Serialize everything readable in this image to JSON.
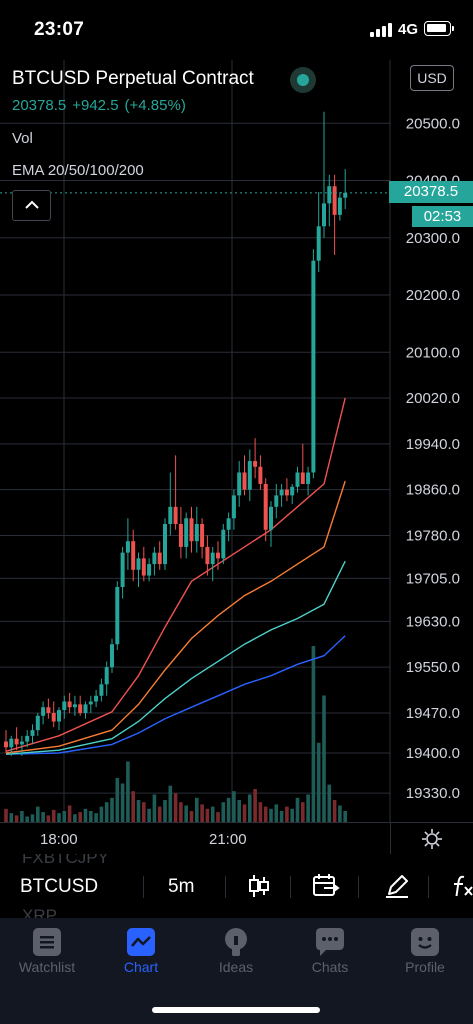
{
  "status_bar": {
    "time": "23:07",
    "network": "4G"
  },
  "legend": {
    "symbol_title": "BTCUSD Perpetual Contract",
    "last_price": "20378.5",
    "change": "+942.5",
    "change_percent": "(+4.85%)",
    "volume_label": "Vol",
    "ema_label": "EMA 20/50/100/200"
  },
  "chart": {
    "currency_button": "USD",
    "last_price_tag": "20378.5",
    "countdown_tag": "02:53",
    "time_labels": [
      "18:00",
      "21:00"
    ],
    "colors": {
      "up": "#26a69a",
      "down": "#ef5350",
      "ema20": "#ef5350",
      "ema50": "#f57c35",
      "ema100": "#4dd0c8",
      "ema200": "#2962ff"
    }
  },
  "chart_data": {
    "type": "candlestick",
    "price_axis_ticks": [
      "20500.0",
      "20400.0",
      "20300.0",
      "20200.0",
      "20100.0",
      "20020.0",
      "19940.0",
      "19860.0",
      "19780.0",
      "19705.0",
      "19630.0",
      "19550.0",
      "19470.0",
      "19400.0",
      "19330.0"
    ],
    "time_axis_ticks": [
      "18:00",
      "21:00"
    ],
    "ylim": [
      19290,
      20600
    ],
    "last_price": 20378.5,
    "candles": [
      [
        19420,
        19440,
        19400,
        19410
      ],
      [
        19410,
        19430,
        19395,
        19425
      ],
      [
        19425,
        19445,
        19405,
        19415
      ],
      [
        19415,
        19430,
        19395,
        19420
      ],
      [
        19420,
        19440,
        19410,
        19430
      ],
      [
        19430,
        19450,
        19415,
        19440
      ],
      [
        19440,
        19470,
        19430,
        19465
      ],
      [
        19465,
        19490,
        19450,
        19480
      ],
      [
        19480,
        19495,
        19460,
        19470
      ],
      [
        19470,
        19490,
        19445,
        19455
      ],
      [
        19455,
        19480,
        19440,
        19475
      ],
      [
        19475,
        19500,
        19460,
        19490
      ],
      [
        19490,
        19505,
        19470,
        19480
      ],
      [
        19480,
        19500,
        19465,
        19485
      ],
      [
        19485,
        19500,
        19465,
        19470
      ],
      [
        19470,
        19490,
        19460,
        19485
      ],
      [
        19485,
        19500,
        19470,
        19490
      ],
      [
        19490,
        19510,
        19480,
        19500
      ],
      [
        19500,
        19530,
        19490,
        19520
      ],
      [
        19520,
        19560,
        19500,
        19550
      ],
      [
        19550,
        19600,
        19540,
        19590
      ],
      [
        19590,
        19700,
        19580,
        19690
      ],
      [
        19690,
        19760,
        19670,
        19750
      ],
      [
        19750,
        19810,
        19720,
        19770
      ],
      [
        19770,
        19790,
        19700,
        19720
      ],
      [
        19720,
        19750,
        19690,
        19740
      ],
      [
        19740,
        19760,
        19700,
        19710
      ],
      [
        19710,
        19740,
        19700,
        19730
      ],
      [
        19730,
        19760,
        19710,
        19750
      ],
      [
        19750,
        19770,
        19720,
        19730
      ],
      [
        19730,
        19810,
        19720,
        19800
      ],
      [
        19800,
        19890,
        19780,
        19830
      ],
      [
        19830,
        19920,
        19790,
        19800
      ],
      [
        19800,
        19830,
        19740,
        19760
      ],
      [
        19760,
        19820,
        19740,
        19810
      ],
      [
        19810,
        19830,
        19750,
        19770
      ],
      [
        19770,
        19830,
        19750,
        19800
      ],
      [
        19800,
        19810,
        19740,
        19760
      ],
      [
        19760,
        19780,
        19710,
        19730
      ],
      [
        19730,
        19760,
        19700,
        19750
      ],
      [
        19750,
        19770,
        19720,
        19740
      ],
      [
        19740,
        19800,
        19730,
        19790
      ],
      [
        19790,
        19820,
        19770,
        19810
      ],
      [
        19810,
        19860,
        19790,
        19850
      ],
      [
        19850,
        19910,
        19830,
        19890
      ],
      [
        19890,
        19920,
        19850,
        19860
      ],
      [
        19860,
        19930,
        19840,
        19910
      ],
      [
        19910,
        19950,
        19880,
        19900
      ],
      [
        19900,
        19920,
        19860,
        19870
      ],
      [
        19870,
        19880,
        19770,
        19790
      ],
      [
        19790,
        19840,
        19760,
        19830
      ],
      [
        19830,
        19870,
        19810,
        19850
      ],
      [
        19850,
        19870,
        19830,
        19860
      ],
      [
        19860,
        19880,
        19840,
        19850
      ],
      [
        19850,
        19870,
        19835,
        19865
      ],
      [
        19865,
        19900,
        19855,
        19890
      ],
      [
        19890,
        19940,
        19870,
        19870
      ],
      [
        19870,
        19900,
        19850,
        19890
      ],
      [
        19890,
        20280,
        19880,
        20260
      ],
      [
        20260,
        20380,
        20240,
        20320
      ],
      [
        20320,
        20520,
        20300,
        20360
      ],
      [
        20360,
        20410,
        20320,
        20390
      ],
      [
        20390,
        20410,
        20270,
        20340
      ],
      [
        20340,
        20380,
        20330,
        20370
      ],
      [
        20370,
        20420,
        20350,
        20378.5
      ]
    ],
    "volume": [
      12,
      8,
      6,
      10,
      5,
      7,
      14,
      9,
      6,
      11,
      8,
      10,
      15,
      7,
      9,
      12,
      10,
      8,
      14,
      18,
      22,
      40,
      35,
      55,
      28,
      20,
      18,
      12,
      25,
      14,
      20,
      33,
      26,
      18,
      15,
      10,
      22,
      16,
      12,
      14,
      9,
      18,
      22,
      28,
      20,
      16,
      25,
      30,
      18,
      14,
      12,
      16,
      10,
      14,
      12,
      22,
      18,
      25,
      160,
      72,
      115,
      34,
      20,
      15,
      10
    ],
    "volume_ylim": [
      0,
      200
    ],
    "ema": {
      "ema20": [
        [
          0,
          19403
        ],
        [
          10,
          19430
        ],
        [
          20,
          19472
        ],
        [
          25,
          19535
        ],
        [
          30,
          19620
        ],
        [
          35,
          19700
        ],
        [
          40,
          19730
        ],
        [
          45,
          19760
        ],
        [
          50,
          19790
        ],
        [
          55,
          19830
        ],
        [
          60,
          19870
        ],
        [
          64,
          20020
        ]
      ],
      "ema50": [
        [
          0,
          19400
        ],
        [
          10,
          19412
        ],
        [
          20,
          19440
        ],
        [
          25,
          19485
        ],
        [
          30,
          19545
        ],
        [
          35,
          19600
        ],
        [
          40,
          19640
        ],
        [
          45,
          19675
        ],
        [
          50,
          19700
        ],
        [
          55,
          19730
        ],
        [
          60,
          19760
        ],
        [
          64,
          19875
        ]
      ],
      "ema100": [
        [
          0,
          19398
        ],
        [
          10,
          19405
        ],
        [
          20,
          19425
        ],
        [
          25,
          19455
        ],
        [
          30,
          19495
        ],
        [
          35,
          19530
        ],
        [
          40,
          19560
        ],
        [
          45,
          19590
        ],
        [
          50,
          19615
        ],
        [
          55,
          19635
        ],
        [
          60,
          19660
        ],
        [
          64,
          19735
        ]
      ],
      "ema200": [
        [
          0,
          19398
        ],
        [
          10,
          19400
        ],
        [
          20,
          19415
        ],
        [
          25,
          19435
        ],
        [
          30,
          19460
        ],
        [
          35,
          19480
        ],
        [
          40,
          19500
        ],
        [
          45,
          19520
        ],
        [
          50,
          19535
        ],
        [
          55,
          19555
        ],
        [
          60,
          19570
        ],
        [
          64,
          19605
        ]
      ]
    }
  },
  "toolbar": {
    "ghost_above": "FXBTCJPY",
    "symbol": "BTCUSD",
    "interval": "5m",
    "ghost_below": "XRP"
  },
  "tabs": [
    {
      "label": "Watchlist",
      "icon": "watchlist-icon"
    },
    {
      "label": "Chart",
      "icon": "chart-icon"
    },
    {
      "label": "Ideas",
      "icon": "ideas-icon"
    },
    {
      "label": "Chats",
      "icon": "chats-icon"
    },
    {
      "label": "Profile",
      "icon": "profile-icon"
    }
  ]
}
